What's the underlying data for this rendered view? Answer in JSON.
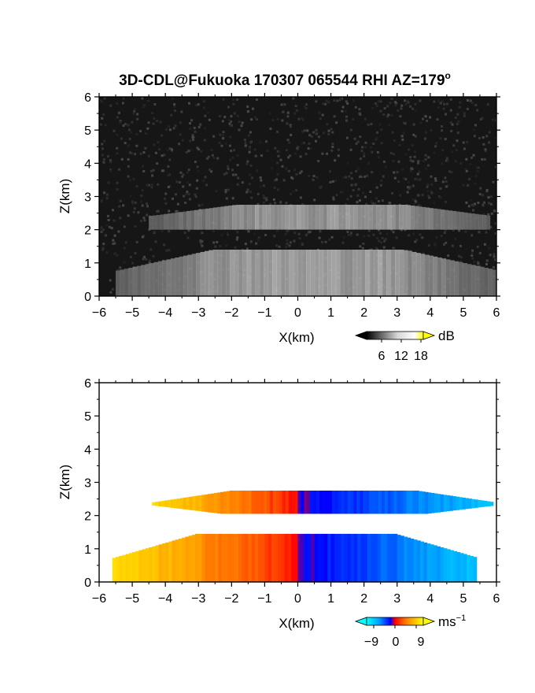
{
  "title": "3D-CDL@Fukuoka 170307 065544 RHI AZ=179",
  "title_superscript": "o",
  "chart_data": [
    {
      "type": "heatmap",
      "variable": "backscatter",
      "xlabel": "X(km)",
      "ylabel": "Z(km)",
      "xlim": [
        -6,
        6
      ],
      "ylim": [
        0,
        6
      ],
      "xticks": [
        "-6",
        "-5",
        "-4",
        "-3",
        "-2",
        "-1",
        "0",
        "1",
        "2",
        "3",
        "4",
        "5",
        "6"
      ],
      "yticks": [
        "0",
        "1",
        "2",
        "3",
        "4",
        "5",
        "6"
      ],
      "colorbar": {
        "unit": "dB",
        "ticks": [
          "6",
          "12",
          "18"
        ],
        "range": [
          0,
          21
        ],
        "colors": [
          "#000000",
          "#ffffff",
          "#ffff00"
        ]
      },
      "layers": [
        {
          "z_bottom": 2.0,
          "z_top": 2.75,
          "x_min": -4.5,
          "x_max": 5.8,
          "level_db": 14
        },
        {
          "z_bottom": 0.0,
          "z_top": 1.4,
          "x_min": -5.5,
          "x_max": 6.0,
          "level_db": 15
        }
      ]
    },
    {
      "type": "heatmap",
      "variable": "doppler velocity",
      "xlabel": "X(km)",
      "ylabel": "Z(km)",
      "xlim": [
        -6,
        6
      ],
      "ylim": [
        0,
        6
      ],
      "xticks": [
        "-6",
        "-5",
        "-4",
        "-3",
        "-2",
        "-1",
        "0",
        "1",
        "2",
        "3",
        "4",
        "5",
        "6"
      ],
      "yticks": [
        "0",
        "1",
        "2",
        "3",
        "4",
        "5",
        "6"
      ],
      "colorbar": {
        "unit": "ms",
        "unit_exponent": "−1",
        "ticks": [
          "−9",
          "0",
          "9"
        ],
        "range": [
          -12,
          12
        ]
      },
      "layers": [
        {
          "z_bottom": 2.05,
          "z_top": 2.75,
          "x_min": -4.4,
          "x_max": 5.9,
          "velocity_left_edge": 9,
          "velocity_right_edge": -9
        },
        {
          "z_bottom": 0.0,
          "z_top": 1.45,
          "x_min": -5.6,
          "x_max": 5.4,
          "velocity_left_edge": 9,
          "velocity_right_edge": -9
        }
      ]
    }
  ]
}
